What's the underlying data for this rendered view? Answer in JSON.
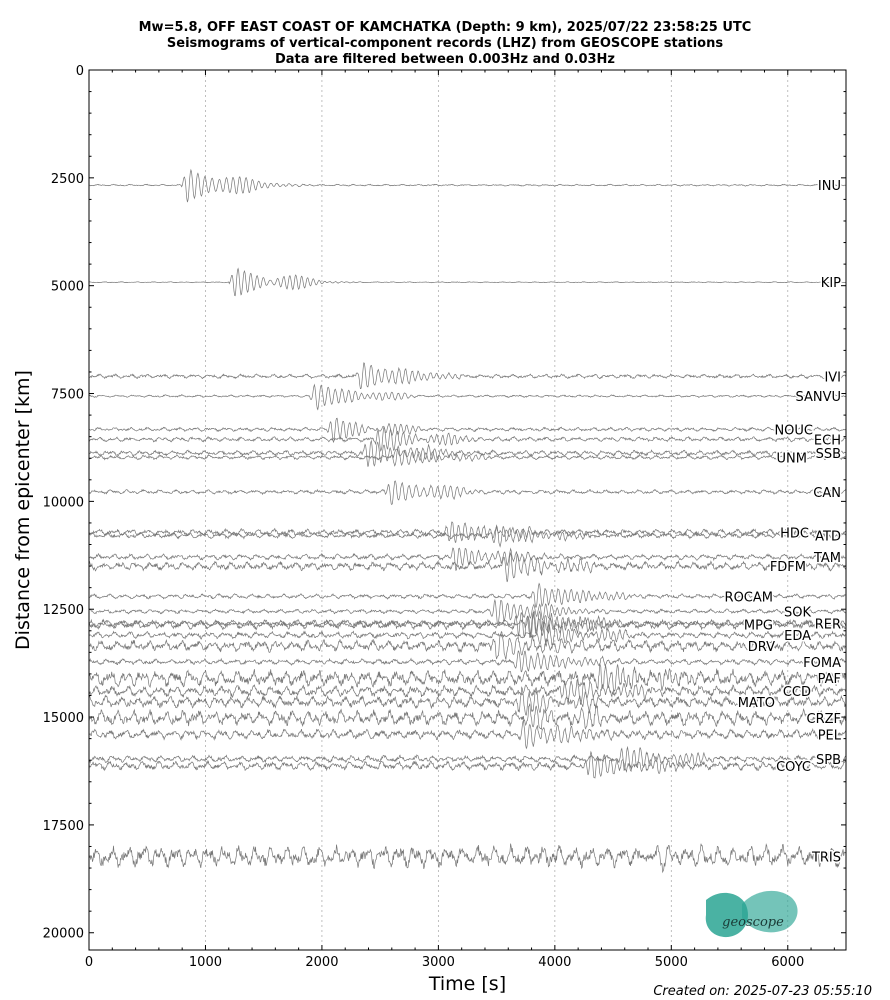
{
  "chart_data": {
    "type": "line",
    "title_lines": [
      "Mw=5.8, OFF EAST COAST OF KAMCHATKA (Depth: 9 km), 2025/07/22 23:58:25 UTC",
      "Seismograms of vertical-component records (LHZ) from GEOSCOPE stations",
      "Data are filtered between 0.003Hz and 0.03Hz"
    ],
    "xlabel": "Time [s]",
    "ylabel": "Distance from epicenter [km]",
    "xlim": [
      0,
      6500
    ],
    "ylim": [
      20400,
      0
    ],
    "y_inverted": true,
    "xticks": [
      0,
      1000,
      2000,
      3000,
      4000,
      5000,
      6000
    ],
    "xtick_labels": [
      "0",
      "1000",
      "2000",
      "3000",
      "4000",
      "5000",
      "6000"
    ],
    "yticks": [
      0,
      2500,
      5000,
      7500,
      10000,
      12500,
      15000,
      17500,
      20000
    ],
    "ytick_labels": [
      "0",
      "2500",
      "5000",
      "7500",
      "10000",
      "12500",
      "15000",
      "17500",
      "20000"
    ],
    "vertical_gridlines": [
      1000,
      2000,
      3000,
      4000,
      5000,
      6000
    ],
    "grid": "vertical dotted",
    "trace_color": "#777777",
    "stations": [
      {
        "name": "INU",
        "distance": 2670,
        "arrival": 850,
        "amp": 390,
        "noise": 18,
        "period": 60
      },
      {
        "name": "KIP",
        "distance": 4920,
        "arrival": 1260,
        "amp": 340,
        "noise": 10,
        "period": 55
      },
      {
        "name": "IVI",
        "distance": 7100,
        "arrival": 2350,
        "amp": 320,
        "noise": 45,
        "period": 60
      },
      {
        "name": "SANVU",
        "distance": 7560,
        "arrival": 1950,
        "amp": 300,
        "noise": 25,
        "period": 60
      },
      {
        "name": "NOUC",
        "distance": 8330,
        "arrival": 2100,
        "amp": 280,
        "noise": 40,
        "period": 55
      },
      {
        "name": "ECH",
        "distance": 8560,
        "arrival": 2500,
        "amp": 300,
        "noise": 50,
        "period": 55
      },
      {
        "name": "SSB",
        "distance": 8880,
        "arrival": 2400,
        "amp": 320,
        "noise": 55,
        "period": 55
      },
      {
        "name": "UNM",
        "distance": 8980,
        "arrival": 2650,
        "amp": 230,
        "noise": 45,
        "period": 60
      },
      {
        "name": "CAN",
        "distance": 9780,
        "arrival": 2600,
        "amp": 300,
        "noise": 45,
        "period": 60
      },
      {
        "name": "HDC",
        "distance": 10720,
        "arrival": 3100,
        "amp": 270,
        "noise": 70,
        "period": 55
      },
      {
        "name": "ATD",
        "distance": 10790,
        "arrival": 3500,
        "amp": 240,
        "noise": 60,
        "period": 55
      },
      {
        "name": "TAM",
        "distance": 11290,
        "arrival": 3150,
        "amp": 280,
        "noise": 60,
        "period": 55
      },
      {
        "name": "FDFM",
        "distance": 11500,
        "arrival": 3600,
        "amp": 330,
        "noise": 90,
        "period": 60
      },
      {
        "name": "ROCAM",
        "distance": 12200,
        "arrival": 3850,
        "amp": 290,
        "noise": 50,
        "period": 55
      },
      {
        "name": "SOK",
        "distance": 12550,
        "arrival": 3500,
        "amp": 310,
        "noise": 45,
        "period": 55
      },
      {
        "name": "RER",
        "distance": 12830,
        "arrival": 3800,
        "amp": 340,
        "noise": 70,
        "period": 50
      },
      {
        "name": "MPG",
        "distance": 12860,
        "arrival": 3700,
        "amp": 320,
        "noise": 90,
        "period": 50
      },
      {
        "name": "EDA",
        "distance": 13100,
        "arrival": 3900,
        "amp": 300,
        "noise": 70,
        "period": 55
      },
      {
        "name": "DRV",
        "distance": 13350,
        "arrival": 3500,
        "amp": 380,
        "noise": 120,
        "period": 70
      },
      {
        "name": "FOMA",
        "distance": 13720,
        "arrival": 3700,
        "amp": 280,
        "noise": 60,
        "period": 55
      },
      {
        "name": "PAF",
        "distance": 14100,
        "arrival": 4400,
        "amp": 320,
        "noise": 170,
        "period": 50
      },
      {
        "name": "CCD",
        "distance": 14400,
        "arrival": 4100,
        "amp": 300,
        "noise": 120,
        "period": 55
      },
      {
        "name": "MATO",
        "distance": 14650,
        "arrival": 3700,
        "amp": 330,
        "noise": 120,
        "period": 60
      },
      {
        "name": "CRZF",
        "distance": 15020,
        "arrival": 3800,
        "amp": 340,
        "noise": 160,
        "period": 65
      },
      {
        "name": "PEL",
        "distance": 15400,
        "arrival": 3750,
        "amp": 330,
        "noise": 100,
        "period": 60
      },
      {
        "name": "SPB",
        "distance": 15970,
        "arrival": 4600,
        "amp": 310,
        "noise": 70,
        "period": 55
      },
      {
        "name": "COYC",
        "distance": 16130,
        "arrival": 4300,
        "amp": 330,
        "noise": 90,
        "period": 55
      },
      {
        "name": "TRIS",
        "distance": 18230,
        "arrival": 4800,
        "amp": 200,
        "noise": 230,
        "period": 90
      }
    ]
  },
  "footer": "Created on: 2025-07-23 05:55:10",
  "logo": {
    "text": "geoscope",
    "color": "#2aa593"
  }
}
